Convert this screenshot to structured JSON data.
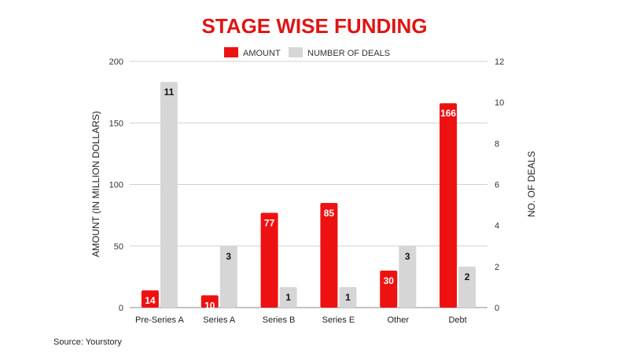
{
  "chart_data": {
    "type": "bar",
    "title": "STAGE WISE FUNDING",
    "categories": [
      "Pre-Series A",
      "Series A",
      "Series B",
      "Series E",
      "Other",
      "Debt"
    ],
    "series": [
      {
        "name": "AMOUNT",
        "axis": "left",
        "color": "#ee1111",
        "values": [
          14,
          10,
          77,
          85,
          30,
          166
        ]
      },
      {
        "name": "NUMBER OF DEALS",
        "axis": "right",
        "color": "#d6d6d6",
        "values": [
          11,
          3,
          1,
          1,
          3,
          2
        ]
      }
    ],
    "ylabel": "AMOUNT (IN MILLION DOLLARS)",
    "ylabel_right": "NO. OF DEALS",
    "ylim": [
      0,
      200
    ],
    "yticks": [
      0,
      50,
      100,
      150,
      200
    ],
    "ylim_right": [
      0,
      12
    ],
    "yticks_right": [
      0,
      2,
      4,
      6,
      8,
      10,
      12
    ],
    "grid": true,
    "legend_position": "top-center"
  },
  "source": "Source: Yourstory"
}
